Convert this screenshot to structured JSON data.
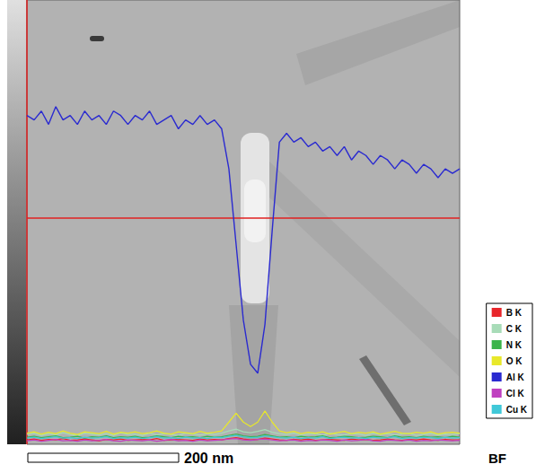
{
  "chart_data": {
    "type": "line",
    "x": [
      0,
      1,
      2,
      3,
      4,
      5,
      6,
      7,
      8,
      9,
      10,
      11,
      12,
      13,
      14,
      15,
      16,
      17,
      18,
      19,
      20,
      21,
      22,
      23,
      24,
      25,
      26,
      27,
      28,
      29,
      30,
      31,
      32,
      33,
      34,
      35,
      36,
      37,
      38,
      39,
      40,
      41,
      42,
      43,
      44,
      45,
      46,
      47,
      48,
      49,
      50,
      51,
      52,
      53,
      54,
      55,
      56,
      57,
      58,
      59,
      60
    ],
    "xlim": [
      0,
      60
    ],
    "ylim": [
      0,
      100
    ],
    "grid": false,
    "tick_labels": false,
    "legend": "right",
    "annotations": [
      "200 nm",
      "BF"
    ],
    "series": [
      {
        "name": "B K",
        "color": "#e8262b",
        "values": [
          1,
          1.2,
          0.9,
          1.1,
          1,
          1.3,
          0.9,
          1,
          1.2,
          1,
          0.8,
          1.1,
          1,
          1.2,
          0.9,
          1,
          1.1,
          1,
          1.3,
          0.9,
          1,
          1.1,
          1,
          0.9,
          1.2,
          1,
          1.1,
          1,
          1.3,
          1.5,
          1.2,
          1,
          1.1,
          1.4,
          1.2,
          1,
          0.9,
          1.1,
          1,
          1.2,
          0.9,
          1,
          1.1,
          1,
          0.9,
          1.2,
          1,
          1.1,
          0.9,
          1,
          1.2,
          1,
          0.9,
          1.1,
          1,
          1.2,
          1,
          0.9,
          1.1,
          1,
          1
        ]
      },
      {
        "name": "C K",
        "color": "#a8dcb8",
        "values": [
          2.2,
          2.5,
          2,
          2.4,
          2.1,
          2.6,
          2.2,
          2,
          2.5,
          2.3,
          2.1,
          2.4,
          2,
          2.6,
          2.2,
          2.3,
          2,
          2.5,
          2.1,
          2.4,
          2.2,
          2,
          2.5,
          2.3,
          2.1,
          2.4,
          2.2,
          2.5,
          3,
          3.4,
          2.8,
          2.6,
          2.9,
          3.3,
          2.7,
          2.4,
          2.2,
          2.5,
          2.1,
          2.3,
          2.4,
          2,
          2.5,
          2.2,
          2.1,
          2.4,
          2.3,
          2,
          2.5,
          2.2,
          2.4,
          2.1,
          2.3,
          2.5,
          2,
          2.2,
          2.4,
          2.1,
          2.3,
          2.2,
          2.4
        ]
      },
      {
        "name": "N K",
        "color": "#3cb44b",
        "values": [
          1.6,
          1.8,
          1.5,
          1.7,
          1.9,
          1.5,
          1.6,
          1.8,
          1.4,
          1.7,
          1.6,
          1.9,
          1.5,
          1.7,
          1.6,
          1.8,
          1.5,
          1.6,
          1.9,
          1.7,
          1.5,
          1.8,
          1.6,
          1.7,
          1.5,
          1.8,
          1.6,
          1.7,
          2,
          2.3,
          1.9,
          1.7,
          1.8,
          2.2,
          1.9,
          1.6,
          1.7,
          1.5,
          1.8,
          1.6,
          1.7,
          1.9,
          1.5,
          1.6,
          1.8,
          1.7,
          1.5,
          1.6,
          1.8,
          1.7,
          1.5,
          1.9,
          1.6,
          1.7,
          1.5,
          1.8,
          1.6,
          1.7,
          1.5,
          1.8,
          1.6
        ]
      },
      {
        "name": "O K",
        "color": "#e8e82a",
        "values": [
          2.5,
          2.8,
          2.3,
          2.7,
          2.4,
          3,
          2.5,
          2.2,
          2.8,
          2.6,
          2.4,
          2.9,
          2.3,
          2.7,
          2.5,
          2.8,
          2.4,
          2.6,
          3,
          2.5,
          2.3,
          2.8,
          2.6,
          2.4,
          2.9,
          2.5,
          2.7,
          3,
          5,
          7,
          5,
          4,
          5,
          7.5,
          5,
          3,
          2.6,
          2.9,
          2.4,
          2.7,
          2.5,
          2.8,
          2.3,
          2.6,
          2.9,
          2.4,
          2.7,
          2.5,
          2.8,
          2.3,
          2.6,
          2.9,
          2.5,
          2.4,
          2.7,
          2.5,
          2.8,
          2.3,
          2.6,
          2.7,
          2.5
        ]
      },
      {
        "name": "Al K",
        "color": "#2a2ad0",
        "values": [
          74,
          73,
          75,
          72,
          76,
          73,
          74,
          72,
          75,
          73,
          74,
          72,
          75,
          74,
          72,
          74,
          73,
          75,
          72,
          73,
          74,
          71,
          73,
          72,
          74,
          72,
          73,
          71,
          62,
          45,
          28,
          18,
          16,
          27,
          48,
          68,
          70,
          68,
          69,
          67,
          68,
          66,
          67,
          65,
          67,
          64,
          66,
          65,
          63,
          65,
          64,
          62,
          64,
          63,
          61,
          63,
          62,
          60,
          62,
          61,
          62
        ]
      },
      {
        "name": "Cl K",
        "color": "#c040c0",
        "values": [
          0.8,
          1,
          0.7,
          0.9,
          1.1,
          0.8,
          0.9,
          0.7,
          1,
          0.8,
          0.9,
          1.1,
          0.8,
          0.7,
          1,
          0.9,
          0.8,
          1,
          0.7,
          0.9,
          1.1,
          0.8,
          0.9,
          0.7,
          1,
          0.8,
          0.9,
          1,
          1.2,
          1.3,
          1,
          0.9,
          1.1,
          1.2,
          1,
          0.8,
          0.9,
          1,
          0.7,
          0.9,
          0.8,
          1,
          0.9,
          0.7,
          1,
          0.8,
          0.9,
          1.1,
          0.8,
          0.7,
          1,
          0.9,
          0.8,
          1,
          0.7,
          0.9,
          0.8,
          1,
          0.9,
          0.8,
          0.9
        ]
      },
      {
        "name": "Cu K",
        "color": "#40c8d8",
        "values": [
          1.4,
          1.6,
          1.3,
          1.5,
          1.7,
          1.4,
          1.5,
          1.3,
          1.6,
          1.4,
          1.5,
          1.7,
          1.3,
          1.5,
          1.4,
          1.6,
          1.3,
          1.5,
          1.7,
          1.4,
          1.5,
          1.3,
          1.6,
          1.4,
          1.5,
          1.3,
          1.6,
          1.5,
          1.8,
          2,
          1.7,
          1.5,
          1.6,
          1.9,
          1.7,
          1.5,
          1.4,
          1.6,
          1.3,
          1.5,
          1.4,
          1.7,
          1.3,
          1.5,
          1.6,
          1.4,
          1.5,
          1.3,
          1.6,
          1.4,
          1.5,
          1.7,
          1.3,
          1.5,
          1.4,
          1.6,
          1.5,
          1.3,
          1.6,
          1.4,
          1.5
        ]
      }
    ]
  }
}
